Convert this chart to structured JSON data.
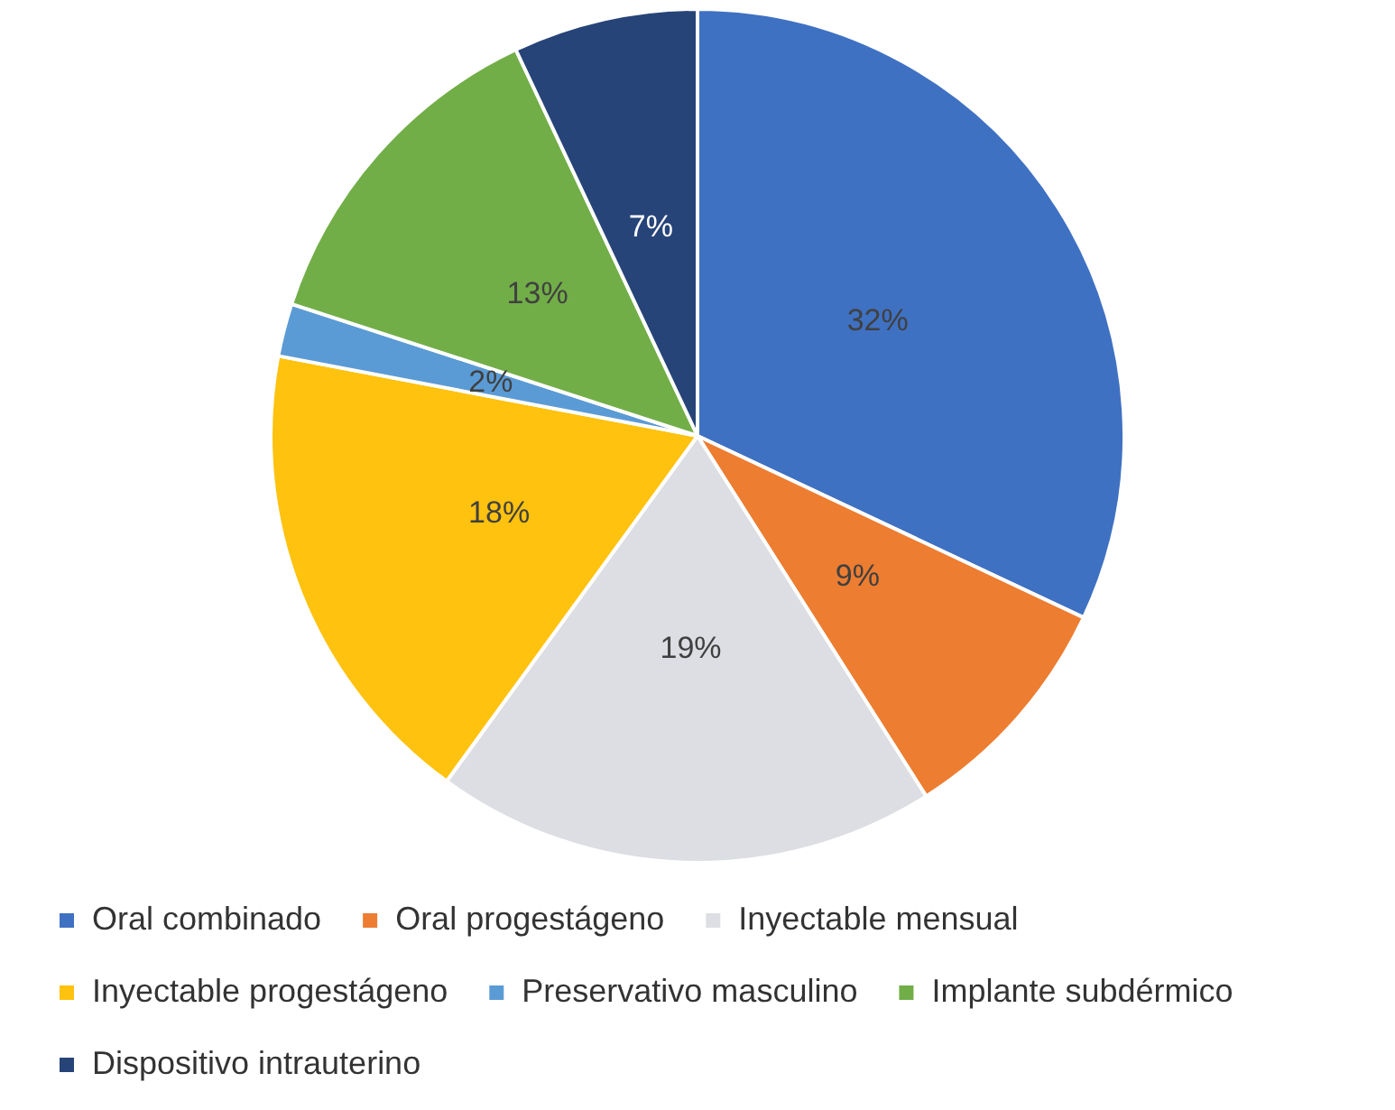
{
  "chart_data": {
    "type": "pie",
    "categories": [
      "Oral combinado",
      "Oral progestágeno",
      "Inyectable mensual",
      "Inyectable progestágeno",
      "Preservativo masculino",
      "Implante subdérmico",
      "Dispositivo intrauterino"
    ],
    "values": [
      32,
      9,
      19,
      18,
      2,
      13,
      7
    ],
    "colors": [
      "#3f71c2",
      "#ed7d31",
      "#dcdee3",
      "#ffc20e",
      "#5b9bd5",
      "#72ae48",
      "#264478"
    ],
    "value_labels": [
      "32%",
      "9%",
      "19%",
      "18%",
      "2%",
      "13%",
      "7%"
    ],
    "legend": "bottom"
  }
}
